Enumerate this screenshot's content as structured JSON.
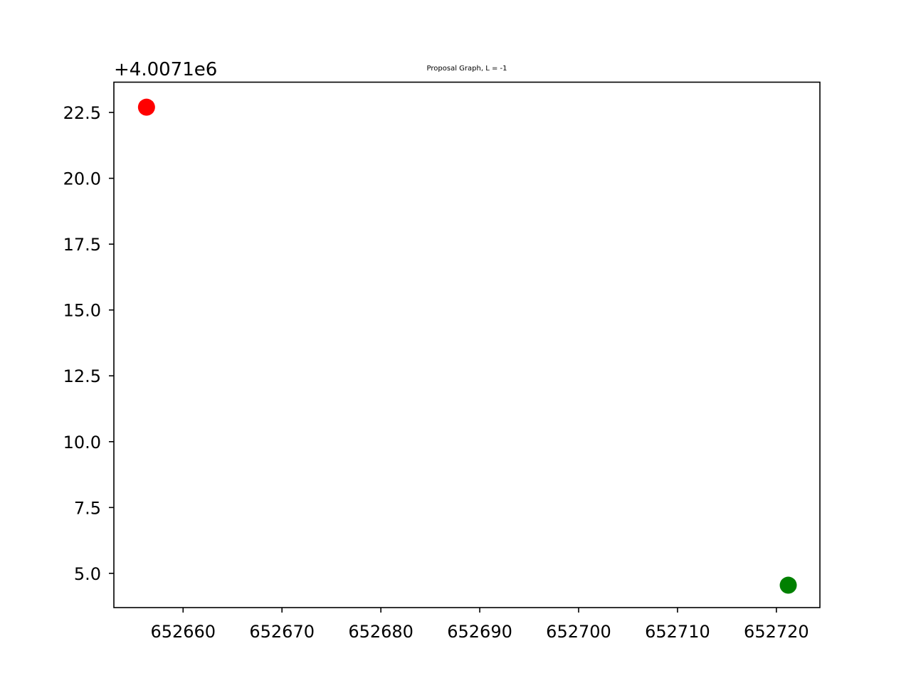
{
  "chart_data": {
    "type": "scatter",
    "title": "Proposal Graph, L = -1",
    "xlabel": "",
    "ylabel": "",
    "y_offset_text": "+4.0071e6",
    "y_offset": 4007100,
    "xlim": [
      652653.0,
      652724.4
    ],
    "ylim": [
      3.7,
      23.65
    ],
    "x_ticks": [
      652660,
      652670,
      652680,
      652690,
      652700,
      652710,
      652720
    ],
    "x_tick_labels": [
      "652660",
      "652670",
      "652680",
      "652690",
      "652700",
      "652710",
      "652720"
    ],
    "y_ticks": [
      5.0,
      7.5,
      10.0,
      12.5,
      15.0,
      17.5,
      20.0,
      22.5
    ],
    "y_tick_labels": [
      "5.0",
      "7.5",
      "10.0",
      "12.5",
      "15.0",
      "17.5",
      "20.0",
      "22.5"
    ],
    "grid": false,
    "legend": "none",
    "points": [
      {
        "x": 652656.3,
        "y": 22.7,
        "color": "#ff0000"
      },
      {
        "x": 652721.2,
        "y": 4.55,
        "color": "#008000"
      }
    ]
  }
}
